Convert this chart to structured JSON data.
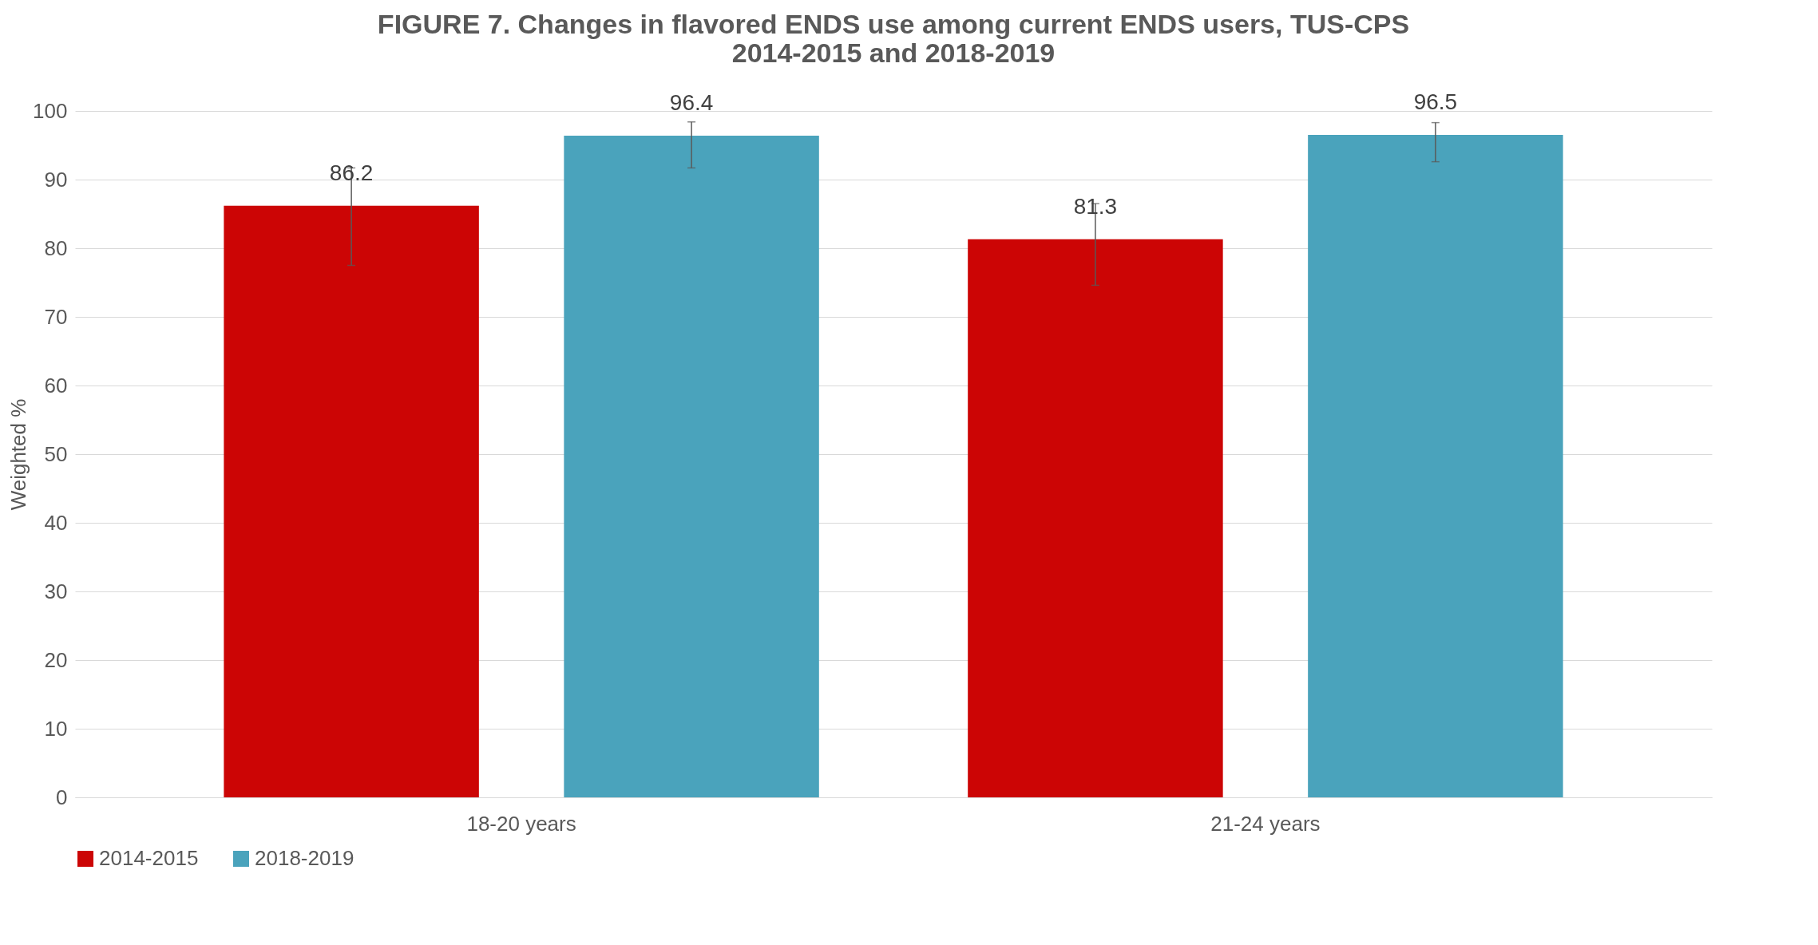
{
  "chart_data": {
    "type": "bar",
    "title": [
      "FIGURE 7. Changes in flavored ENDS use among current ENDS users, TUS-CPS",
      "2014-2015 and 2018-2019"
    ],
    "ylabel": "Weighted %",
    "categories": [
      "18-20 years",
      "21-24 years"
    ],
    "series": [
      {
        "name": "2014-2015",
        "color": "#cc0505",
        "values": [
          86.2,
          81.3
        ],
        "errors": [
          [
            77.5,
            91.7
          ],
          [
            74.6,
            86.5
          ]
        ]
      },
      {
        "name": "2018-2019",
        "color": "#4aa3bc",
        "values": [
          96.4,
          96.5
        ],
        "errors": [
          [
            91.7,
            98.4
          ],
          [
            92.6,
            98.3
          ]
        ]
      }
    ],
    "ylim": [
      0,
      100
    ],
    "yticks": [
      0,
      10,
      20,
      30,
      40,
      50,
      60,
      70,
      80,
      90,
      100
    ],
    "grid": "y",
    "legend": "bottom",
    "data_labels": true
  }
}
